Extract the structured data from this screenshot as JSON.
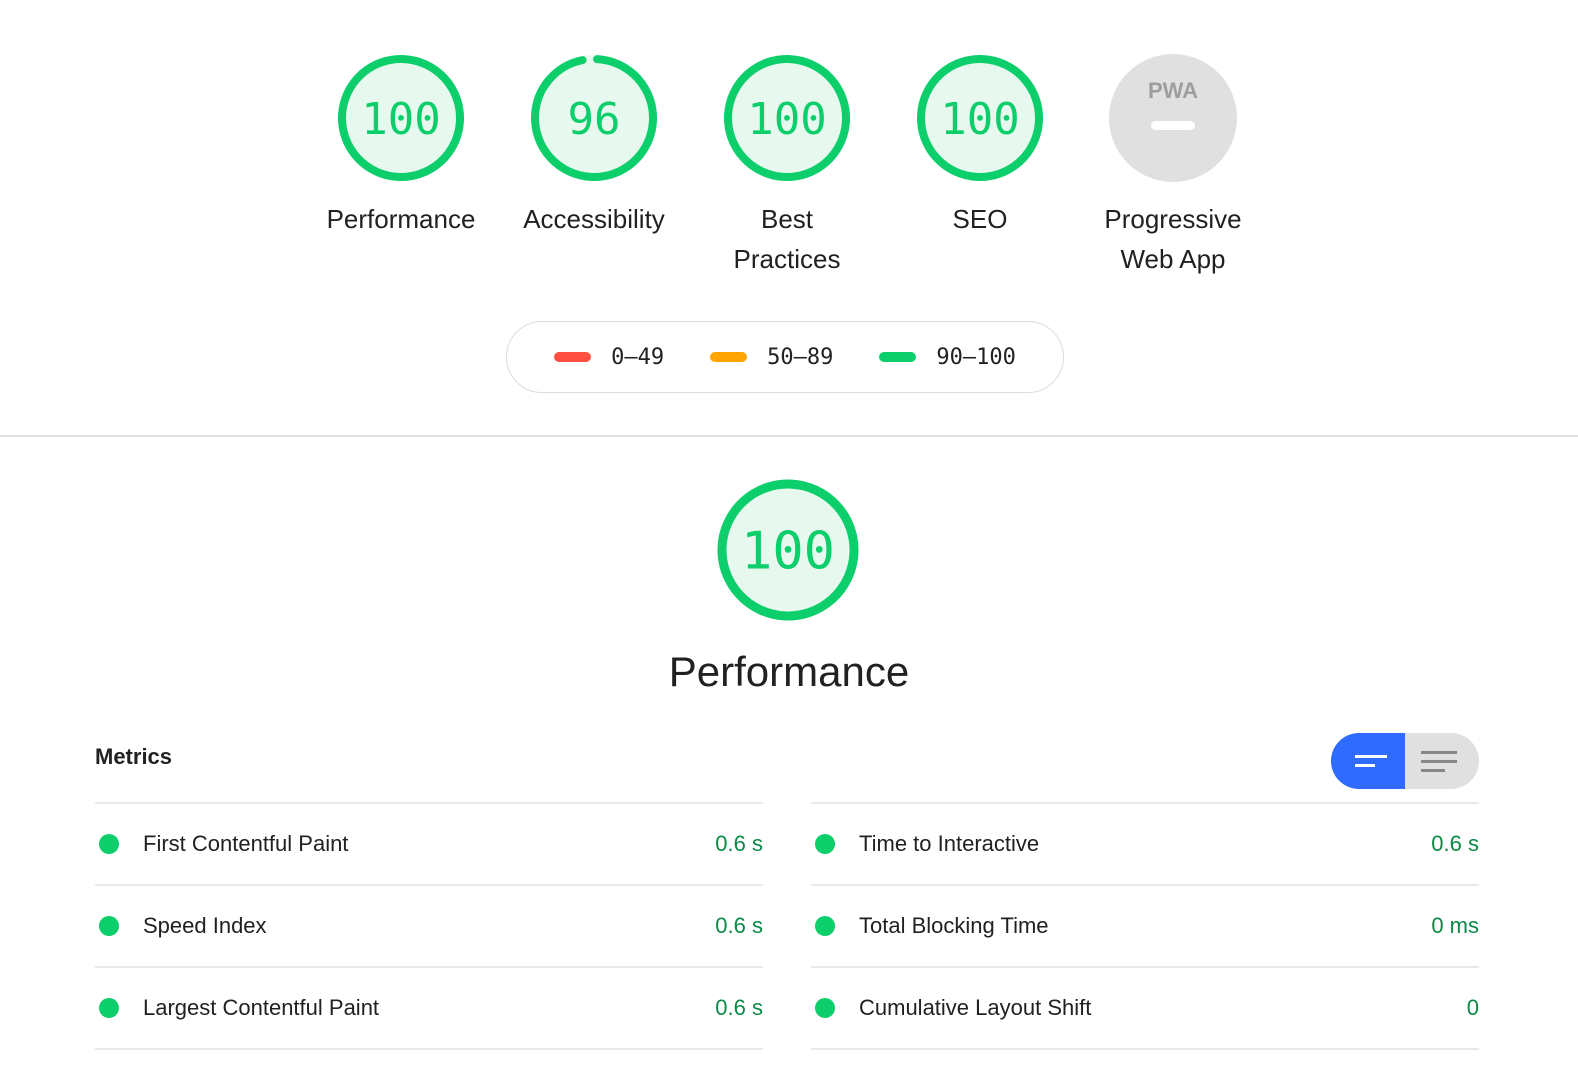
{
  "gauges": [
    {
      "label": "Performance",
      "score": 100
    },
    {
      "label": "Accessibility",
      "score": 96
    },
    {
      "label": "Best Practices",
      "score": 100
    },
    {
      "label": "SEO",
      "score": 100
    },
    {
      "label": "Progressive Web App",
      "badge": "PWA",
      "score": null
    }
  ],
  "legend": [
    {
      "range": "0–49",
      "color": "#ff4e42"
    },
    {
      "range": "50–89",
      "color": "#ffa400"
    },
    {
      "range": "90–100",
      "color": "#0cce6b"
    }
  ],
  "category": {
    "title": "Performance",
    "score": 100
  },
  "metrics": {
    "heading": "Metrics",
    "view_toggle": {
      "active": "summary-view",
      "icons": [
        "summary-view-icon",
        "list-view-icon"
      ]
    },
    "left": [
      {
        "name": "First Contentful Paint",
        "value": "0.6 s"
      },
      {
        "name": "Speed Index",
        "value": "0.6 s"
      },
      {
        "name": "Largest Contentful Paint",
        "value": "0.6 s"
      }
    ],
    "right": [
      {
        "name": "Time to Interactive",
        "value": "0.6 s"
      },
      {
        "name": "Total Blocking Time",
        "value": "0 ms"
      },
      {
        "name": "Cumulative Layout Shift",
        "value": "0"
      }
    ]
  },
  "colors": {
    "pass": "#0cce6b",
    "pass_fill": "#e7f9ef",
    "pass_text": "#0a8a46",
    "accent": "#2f6bff"
  }
}
